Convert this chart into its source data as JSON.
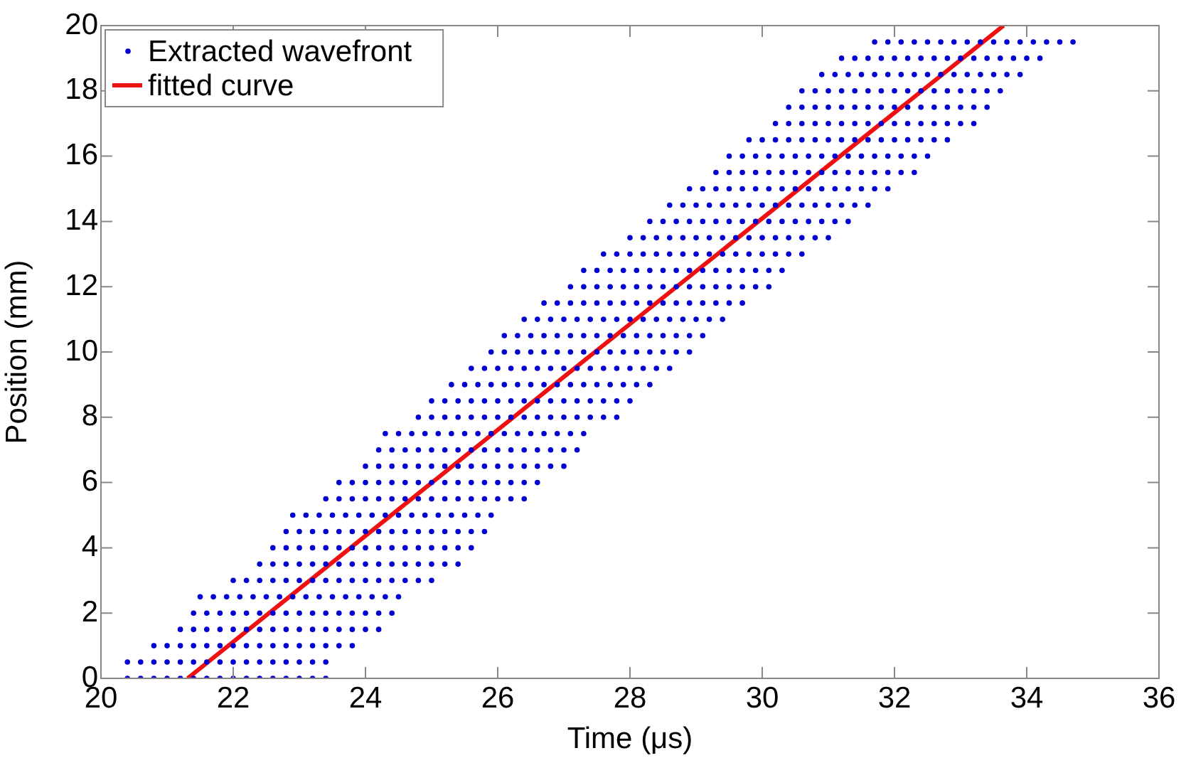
{
  "chart_data": {
    "type": "scatter",
    "xlabel": "Time (μs)",
    "ylabel": "Position (mm)",
    "xlim": [
      20,
      36
    ],
    "xticks": [
      20,
      22,
      24,
      26,
      28,
      30,
      32,
      34,
      36
    ],
    "ylim": [
      0,
      20
    ],
    "yticks": [
      0,
      2,
      4,
      6,
      8,
      10,
      12,
      14,
      16,
      18,
      20
    ],
    "legend": "top left",
    "series": [
      {
        "name": "Extracted wavefront",
        "marker": "circle",
        "color": "#0000d0",
        "x": [
          20.4,
          20.6,
          20.8,
          21,
          21.2,
          21.4,
          21.6,
          21.8,
          22,
          22.2,
          22.4,
          22.6,
          22.8,
          23,
          23.2,
          23.4,
          20.4,
          20.6,
          20.8,
          21,
          21.2,
          21.4,
          21.6,
          21.8,
          22,
          22.2,
          22.4,
          22.6,
          22.8,
          23,
          23.2,
          23.4,
          20.8,
          21,
          21.2,
          21.4,
          21.6,
          21.8,
          22,
          22.2,
          22.4,
          22.6,
          22.8,
          23,
          23.2,
          23.4,
          23.6,
          23.8,
          21.2,
          21.4,
          21.6,
          21.8,
          22,
          22.2,
          22.4,
          22.6,
          22.8,
          23,
          23.2,
          23.4,
          23.6,
          23.8,
          24,
          24.2,
          21.4,
          21.6,
          21.8,
          22,
          22.2,
          22.4,
          22.6,
          22.8,
          23,
          23.2,
          23.4,
          23.6,
          23.8,
          24,
          24.2,
          24.4,
          21.5,
          21.7,
          21.9,
          22.1,
          22.3,
          22.5,
          22.7,
          22.9,
          23.1,
          23.3,
          23.5,
          23.7,
          23.9,
          24.1,
          24.3,
          24.5,
          22,
          22.2,
          22.4,
          22.6,
          22.8,
          23,
          23.2,
          23.4,
          23.6,
          23.8,
          24,
          24.2,
          24.4,
          24.6,
          24.8,
          25,
          22.4,
          22.6,
          22.8,
          23,
          23.2,
          23.4,
          23.6,
          23.8,
          24,
          24.2,
          24.4,
          24.6,
          24.8,
          25,
          25.2,
          25.4,
          22.6,
          22.8,
          23,
          23.2,
          23.4,
          23.6,
          23.8,
          24,
          24.2,
          24.4,
          24.6,
          24.8,
          25,
          25.2,
          25.4,
          25.6,
          22.8,
          23,
          23.2,
          23.4,
          23.6,
          23.8,
          24,
          24.2,
          24.4,
          24.6,
          24.8,
          25,
          25.2,
          25.4,
          25.6,
          25.8,
          22.9,
          23.1,
          23.3,
          23.5,
          23.7,
          23.9,
          24.1,
          24.3,
          24.5,
          24.7,
          24.9,
          25.1,
          25.3,
          25.5,
          25.7,
          25.9,
          23.4,
          23.6,
          23.8,
          24,
          24.2,
          24.4,
          24.6,
          24.8,
          25,
          25.2,
          25.4,
          25.6,
          25.8,
          26,
          26.2,
          26.4,
          23.6,
          23.8,
          24,
          24.2,
          24.4,
          24.6,
          24.8,
          25,
          25.2,
          25.4,
          25.6,
          25.8,
          26,
          26.2,
          26.4,
          26.6,
          24,
          24.2,
          24.4,
          24.6,
          24.8,
          25,
          25.2,
          25.4,
          25.6,
          25.8,
          26,
          26.2,
          26.4,
          26.6,
          26.8,
          27,
          24.2,
          24.4,
          24.6,
          24.8,
          25,
          25.2,
          25.4,
          25.6,
          25.8,
          26,
          26.2,
          26.4,
          26.6,
          26.8,
          27,
          27.2,
          24.3,
          24.5,
          24.7,
          24.9,
          25.1,
          25.3,
          25.5,
          25.7,
          25.9,
          26.1,
          26.3,
          26.5,
          26.7,
          26.9,
          27.1,
          27.3,
          24.8,
          25,
          25.2,
          25.4,
          25.6,
          25.8,
          26,
          26.2,
          26.4,
          26.6,
          26.8,
          27,
          27.2,
          27.4,
          27.6,
          27.8,
          25,
          25.2,
          25.4,
          25.6,
          25.8,
          26,
          26.2,
          26.4,
          26.6,
          26.8,
          27,
          27.2,
          27.4,
          27.6,
          27.8,
          28,
          25.3,
          25.5,
          25.7,
          25.9,
          26.1,
          26.3,
          26.5,
          26.7,
          26.9,
          27.1,
          27.3,
          27.5,
          27.7,
          27.9,
          28.1,
          28.3,
          25.6,
          25.8,
          26,
          26.2,
          26.4,
          26.6,
          26.8,
          27,
          27.2,
          27.4,
          27.6,
          27.8,
          28,
          28.2,
          28.4,
          28.6,
          25.9,
          26.1,
          26.3,
          26.5,
          26.7,
          26.9,
          27.1,
          27.3,
          27.5,
          27.7,
          27.9,
          28.1,
          28.3,
          28.5,
          28.7,
          28.9,
          26.1,
          26.3,
          26.5,
          26.7,
          26.9,
          27.1,
          27.3,
          27.5,
          27.7,
          27.9,
          28.1,
          28.3,
          28.5,
          28.7,
          28.9,
          29.1,
          26.4,
          26.6,
          26.8,
          27,
          27.2,
          27.4,
          27.6,
          27.8,
          28,
          28.2,
          28.4,
          28.6,
          28.8,
          29,
          29.2,
          29.4,
          26.7,
          26.9,
          27.1,
          27.3,
          27.5,
          27.7,
          27.9,
          28.1,
          28.3,
          28.5,
          28.7,
          28.9,
          29.1,
          29.3,
          29.5,
          29.7,
          27.1,
          27.3,
          27.5,
          27.7,
          27.9,
          28.1,
          28.3,
          28.5,
          28.7,
          28.9,
          29.1,
          29.3,
          29.5,
          29.7,
          29.9,
          30.1,
          27.3,
          27.5,
          27.7,
          27.9,
          28.1,
          28.3,
          28.5,
          28.7,
          28.9,
          29.1,
          29.3,
          29.5,
          29.7,
          29.9,
          30.1,
          30.3,
          27.6,
          27.8,
          28,
          28.2,
          28.4,
          28.6,
          28.8,
          29,
          29.2,
          29.4,
          29.6,
          29.8,
          30,
          30.2,
          30.4,
          30.6,
          28,
          28.2,
          28.4,
          28.6,
          28.8,
          29,
          29.2,
          29.4,
          29.6,
          29.8,
          30,
          30.2,
          30.4,
          30.6,
          30.8,
          31,
          28.3,
          28.5,
          28.7,
          28.9,
          29.1,
          29.3,
          29.5,
          29.7,
          29.9,
          30.1,
          30.3,
          30.5,
          30.7,
          30.9,
          31.1,
          31.3,
          28.6,
          28.8,
          29,
          29.2,
          29.4,
          29.6,
          29.8,
          30,
          30.2,
          30.4,
          30.6,
          30.8,
          31,
          31.2,
          31.4,
          31.6,
          28.9,
          29.1,
          29.3,
          29.5,
          29.7,
          29.9,
          30.1,
          30.3,
          30.5,
          30.7,
          30.9,
          31.1,
          31.3,
          31.5,
          31.7,
          31.9,
          29.3,
          29.5,
          29.7,
          29.9,
          30.1,
          30.3,
          30.5,
          30.7,
          30.9,
          31.1,
          31.3,
          31.5,
          31.7,
          31.9,
          32.1,
          32.3,
          29.5,
          29.7,
          29.9,
          30.1,
          30.3,
          30.5,
          30.7,
          30.9,
          31.1,
          31.3,
          31.5,
          31.7,
          31.9,
          32.1,
          32.3,
          32.5,
          29.8,
          30,
          30.2,
          30.4,
          30.6,
          30.8,
          31,
          31.2,
          31.4,
          31.6,
          31.8,
          32,
          32.2,
          32.4,
          32.6,
          32.8,
          30.2,
          30.4,
          30.6,
          30.8,
          31,
          31.2,
          31.4,
          31.6,
          31.8,
          32,
          32.2,
          32.4,
          32.6,
          32.8,
          33,
          33.2,
          30.4,
          30.6,
          30.8,
          31,
          31.2,
          31.4,
          31.6,
          31.8,
          32,
          32.2,
          32.4,
          32.6,
          32.8,
          33,
          33.2,
          33.4,
          30.6,
          30.8,
          31,
          31.2,
          31.4,
          31.6,
          31.8,
          32,
          32.2,
          32.4,
          32.6,
          32.8,
          33,
          33.2,
          33.4,
          33.6,
          30.9,
          31.1,
          31.3,
          31.5,
          31.7,
          31.9,
          32.1,
          32.3,
          32.5,
          32.7,
          32.9,
          33.1,
          33.3,
          33.5,
          33.7,
          33.9,
          31.2,
          31.4,
          31.6,
          31.8,
          32,
          32.2,
          32.4,
          32.6,
          32.8,
          33,
          33.2,
          33.4,
          33.6,
          33.8,
          34,
          34.2,
          31.7,
          31.9,
          32.1,
          32.3,
          32.5,
          32.7,
          32.9,
          33.1,
          33.3,
          33.5,
          33.7,
          33.9,
          34.1,
          34.3,
          34.5,
          34.7
        ],
        "values": [
          0,
          0,
          0,
          0,
          0,
          0,
          0,
          0,
          0,
          0,
          0,
          0,
          0,
          0,
          0,
          0,
          0.5,
          0.5,
          0.5,
          0.5,
          0.5,
          0.5,
          0.5,
          0.5,
          0.5,
          0.5,
          0.5,
          0.5,
          0.5,
          0.5,
          0.5,
          0.5,
          1,
          1,
          1,
          1,
          1,
          1,
          1,
          1,
          1,
          1,
          1,
          1,
          1,
          1,
          1,
          1,
          1.5,
          1.5,
          1.5,
          1.5,
          1.5,
          1.5,
          1.5,
          1.5,
          1.5,
          1.5,
          1.5,
          1.5,
          1.5,
          1.5,
          1.5,
          1.5,
          2,
          2,
          2,
          2,
          2,
          2,
          2,
          2,
          2,
          2,
          2,
          2,
          2,
          2,
          2,
          2,
          2.5,
          2.5,
          2.5,
          2.5,
          2.5,
          2.5,
          2.5,
          2.5,
          2.5,
          2.5,
          2.5,
          2.5,
          2.5,
          2.5,
          2.5,
          2.5,
          3,
          3,
          3,
          3,
          3,
          3,
          3,
          3,
          3,
          3,
          3,
          3,
          3,
          3,
          3,
          3,
          3.5,
          3.5,
          3.5,
          3.5,
          3.5,
          3.5,
          3.5,
          3.5,
          3.5,
          3.5,
          3.5,
          3.5,
          3.5,
          3.5,
          3.5,
          3.5,
          4,
          4,
          4,
          4,
          4,
          4,
          4,
          4,
          4,
          4,
          4,
          4,
          4,
          4,
          4,
          4,
          4.5,
          4.5,
          4.5,
          4.5,
          4.5,
          4.5,
          4.5,
          4.5,
          4.5,
          4.5,
          4.5,
          4.5,
          4.5,
          4.5,
          4.5,
          4.5,
          5,
          5,
          5,
          5,
          5,
          5,
          5,
          5,
          5,
          5,
          5,
          5,
          5,
          5,
          5,
          5,
          5.5,
          5.5,
          5.5,
          5.5,
          5.5,
          5.5,
          5.5,
          5.5,
          5.5,
          5.5,
          5.5,
          5.5,
          5.5,
          5.5,
          5.5,
          5.5,
          6,
          6,
          6,
          6,
          6,
          6,
          6,
          6,
          6,
          6,
          6,
          6,
          6,
          6,
          6,
          6,
          6.5,
          6.5,
          6.5,
          6.5,
          6.5,
          6.5,
          6.5,
          6.5,
          6.5,
          6.5,
          6.5,
          6.5,
          6.5,
          6.5,
          6.5,
          6.5,
          7,
          7,
          7,
          7,
          7,
          7,
          7,
          7,
          7,
          7,
          7,
          7,
          7,
          7,
          7,
          7,
          7.5,
          7.5,
          7.5,
          7.5,
          7.5,
          7.5,
          7.5,
          7.5,
          7.5,
          7.5,
          7.5,
          7.5,
          7.5,
          7.5,
          7.5,
          7.5,
          8,
          8,
          8,
          8,
          8,
          8,
          8,
          8,
          8,
          8,
          8,
          8,
          8,
          8,
          8,
          8,
          8.5,
          8.5,
          8.5,
          8.5,
          8.5,
          8.5,
          8.5,
          8.5,
          8.5,
          8.5,
          8.5,
          8.5,
          8.5,
          8.5,
          8.5,
          8.5,
          9,
          9,
          9,
          9,
          9,
          9,
          9,
          9,
          9,
          9,
          9,
          9,
          9,
          9,
          9,
          9,
          9.5,
          9.5,
          9.5,
          9.5,
          9.5,
          9.5,
          9.5,
          9.5,
          9.5,
          9.5,
          9.5,
          9.5,
          9.5,
          9.5,
          9.5,
          9.5,
          10,
          10,
          10,
          10,
          10,
          10,
          10,
          10,
          10,
          10,
          10,
          10,
          10,
          10,
          10,
          10,
          10.5,
          10.5,
          10.5,
          10.5,
          10.5,
          10.5,
          10.5,
          10.5,
          10.5,
          10.5,
          10.5,
          10.5,
          10.5,
          10.5,
          10.5,
          10.5,
          11,
          11,
          11,
          11,
          11,
          11,
          11,
          11,
          11,
          11,
          11,
          11,
          11,
          11,
          11,
          11,
          11.5,
          11.5,
          11.5,
          11.5,
          11.5,
          11.5,
          11.5,
          11.5,
          11.5,
          11.5,
          11.5,
          11.5,
          11.5,
          11.5,
          11.5,
          11.5,
          12,
          12,
          12,
          12,
          12,
          12,
          12,
          12,
          12,
          12,
          12,
          12,
          12,
          12,
          12,
          12,
          12.5,
          12.5,
          12.5,
          12.5,
          12.5,
          12.5,
          12.5,
          12.5,
          12.5,
          12.5,
          12.5,
          12.5,
          12.5,
          12.5,
          12.5,
          12.5,
          13,
          13,
          13,
          13,
          13,
          13,
          13,
          13,
          13,
          13,
          13,
          13,
          13,
          13,
          13,
          13,
          13.5,
          13.5,
          13.5,
          13.5,
          13.5,
          13.5,
          13.5,
          13.5,
          13.5,
          13.5,
          13.5,
          13.5,
          13.5,
          13.5,
          13.5,
          13.5,
          14,
          14,
          14,
          14,
          14,
          14,
          14,
          14,
          14,
          14,
          14,
          14,
          14,
          14,
          14,
          14,
          14.5,
          14.5,
          14.5,
          14.5,
          14.5,
          14.5,
          14.5,
          14.5,
          14.5,
          14.5,
          14.5,
          14.5,
          14.5,
          14.5,
          14.5,
          14.5,
          15,
          15,
          15,
          15,
          15,
          15,
          15,
          15,
          15,
          15,
          15,
          15,
          15,
          15,
          15,
          15,
          15.5,
          15.5,
          15.5,
          15.5,
          15.5,
          15.5,
          15.5,
          15.5,
          15.5,
          15.5,
          15.5,
          15.5,
          15.5,
          15.5,
          15.5,
          15.5,
          16,
          16,
          16,
          16,
          16,
          16,
          16,
          16,
          16,
          16,
          16,
          16,
          16,
          16,
          16,
          16,
          16.5,
          16.5,
          16.5,
          16.5,
          16.5,
          16.5,
          16.5,
          16.5,
          16.5,
          16.5,
          16.5,
          16.5,
          16.5,
          16.5,
          16.5,
          16.5,
          17,
          17,
          17,
          17,
          17,
          17,
          17,
          17,
          17,
          17,
          17,
          17,
          17,
          17,
          17,
          17,
          17.5,
          17.5,
          17.5,
          17.5,
          17.5,
          17.5,
          17.5,
          17.5,
          17.5,
          17.5,
          17.5,
          17.5,
          17.5,
          17.5,
          17.5,
          17.5,
          18,
          18,
          18,
          18,
          18,
          18,
          18,
          18,
          18,
          18,
          18,
          18,
          18,
          18,
          18,
          18,
          18.5,
          18.5,
          18.5,
          18.5,
          18.5,
          18.5,
          18.5,
          18.5,
          18.5,
          18.5,
          18.5,
          18.5,
          18.5,
          18.5,
          18.5,
          18.5,
          19,
          19,
          19,
          19,
          19,
          19,
          19,
          19,
          19,
          19,
          19,
          19,
          19,
          19,
          19,
          19,
          19.5,
          19.5,
          19.5,
          19.5,
          19.5,
          19.5,
          19.5,
          19.5,
          19.5,
          19.5,
          19.5,
          19.5,
          19.5,
          19.5,
          19.5,
          19.5
        ]
      },
      {
        "name": "fitted curve",
        "type": "line",
        "marker": "none",
        "color": "#ee1111",
        "x": [
          21.31,
          27.47,
          33.65
        ],
        "values": [
          0,
          10,
          20
        ]
      }
    ]
  }
}
